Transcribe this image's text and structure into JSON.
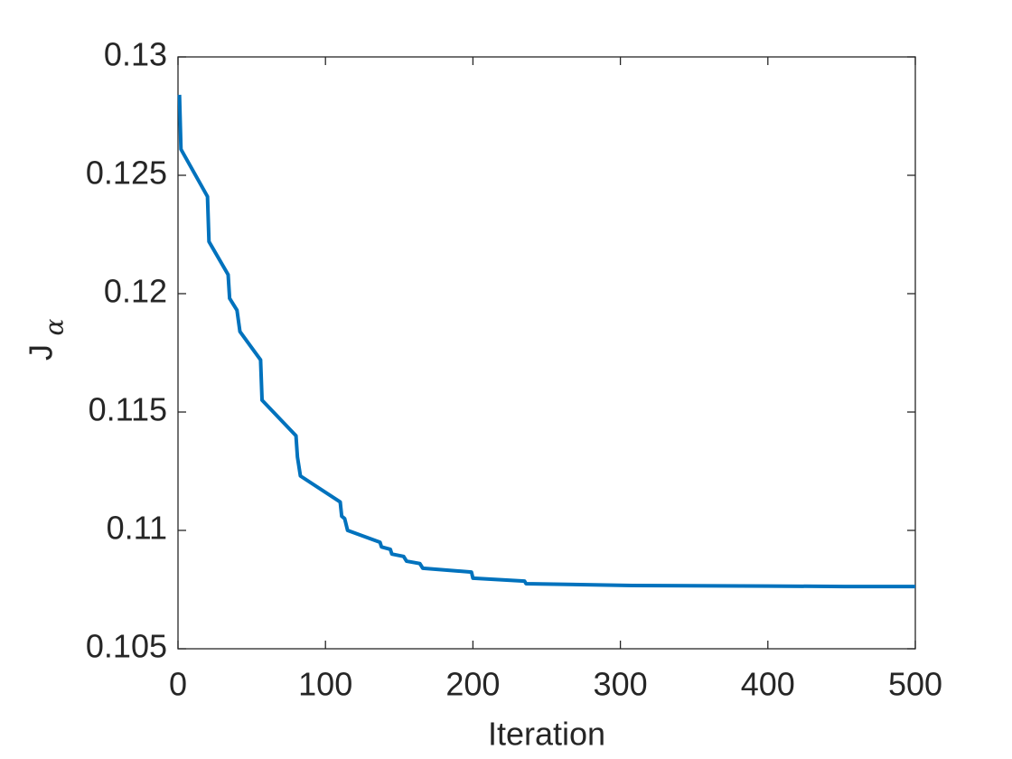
{
  "chart_data": {
    "type": "line",
    "xlabel": "Iteration",
    "ylabel": "J",
    "ylabel_subscript": "α",
    "x": [
      1,
      2,
      20,
      21,
      34,
      35,
      40,
      42,
      56,
      57,
      80,
      81,
      83,
      110,
      111,
      113,
      115,
      137,
      138,
      144,
      145,
      153,
      155,
      164,
      166,
      199,
      200,
      235,
      236,
      308,
      400,
      452,
      500
    ],
    "series": [
      {
        "color": "#0072bd",
        "values": [
          0.1284,
          0.1261,
          0.1241,
          0.1222,
          0.1208,
          0.1198,
          0.1193,
          0.1184,
          0.1172,
          0.1155,
          0.114,
          0.1131,
          0.1123,
          0.1112,
          0.1106,
          0.1105,
          0.11,
          0.1095,
          0.1093,
          0.1092,
          0.109,
          0.1089,
          0.1087,
          0.1086,
          0.1084,
          0.10824,
          0.10798,
          0.10786,
          0.10775,
          0.10767,
          0.10765,
          0.10763,
          0.10763
        ]
      }
    ],
    "xlim": [
      0,
      500
    ],
    "xticks": [
      0,
      100,
      200,
      300,
      400,
      500
    ],
    "ylim": [
      0.105,
      0.13
    ],
    "yticks": [
      0.105,
      0.11,
      0.115,
      0.12,
      0.125,
      0.13
    ],
    "grid": false
  }
}
